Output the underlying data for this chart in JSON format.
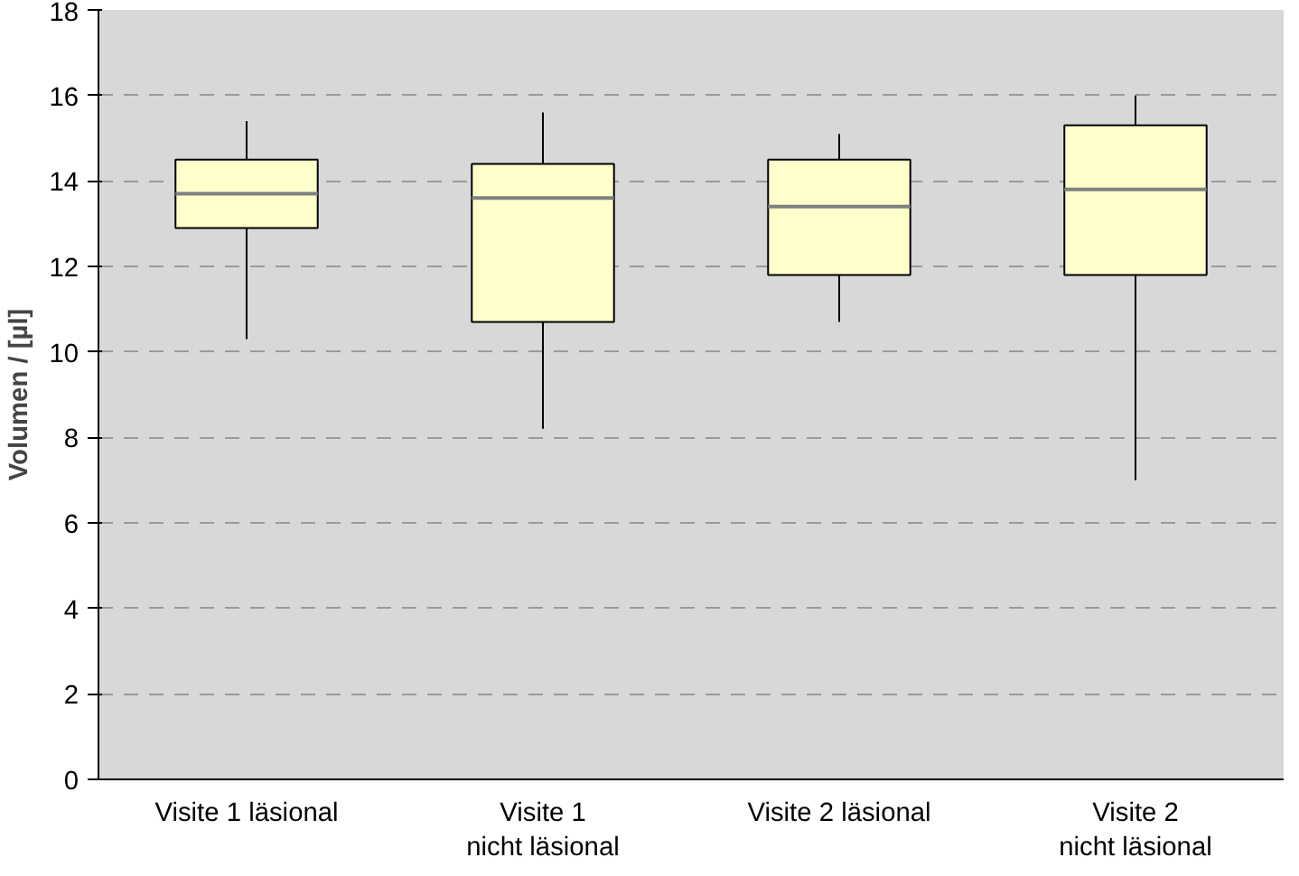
{
  "chart_data": {
    "type": "box",
    "ylabel": "Volumen / [µl]",
    "categories": [
      "Visite 1 läsional",
      "Visite 1\nnicht läsional",
      "Visite 2 läsional",
      "Visite 2\nnicht läsional"
    ],
    "boxes": [
      {
        "low": 10.3,
        "q1": 12.9,
        "median": 13.7,
        "q3": 14.5,
        "high": 15.4
      },
      {
        "low": 8.2,
        "q1": 10.7,
        "median": 13.6,
        "q3": 14.4,
        "high": 15.6
      },
      {
        "low": 10.7,
        "q1": 11.8,
        "median": 13.4,
        "q3": 14.5,
        "high": 15.1
      },
      {
        "low": 7.0,
        "q1": 11.8,
        "median": 13.8,
        "q3": 15.3,
        "high": 16.0
      }
    ],
    "color": "#ffffcc",
    "ylim": [
      0,
      18
    ],
    "yticks": [
      0,
      2,
      4,
      6,
      8,
      10,
      12,
      14,
      16,
      18
    ],
    "grid": "y"
  }
}
